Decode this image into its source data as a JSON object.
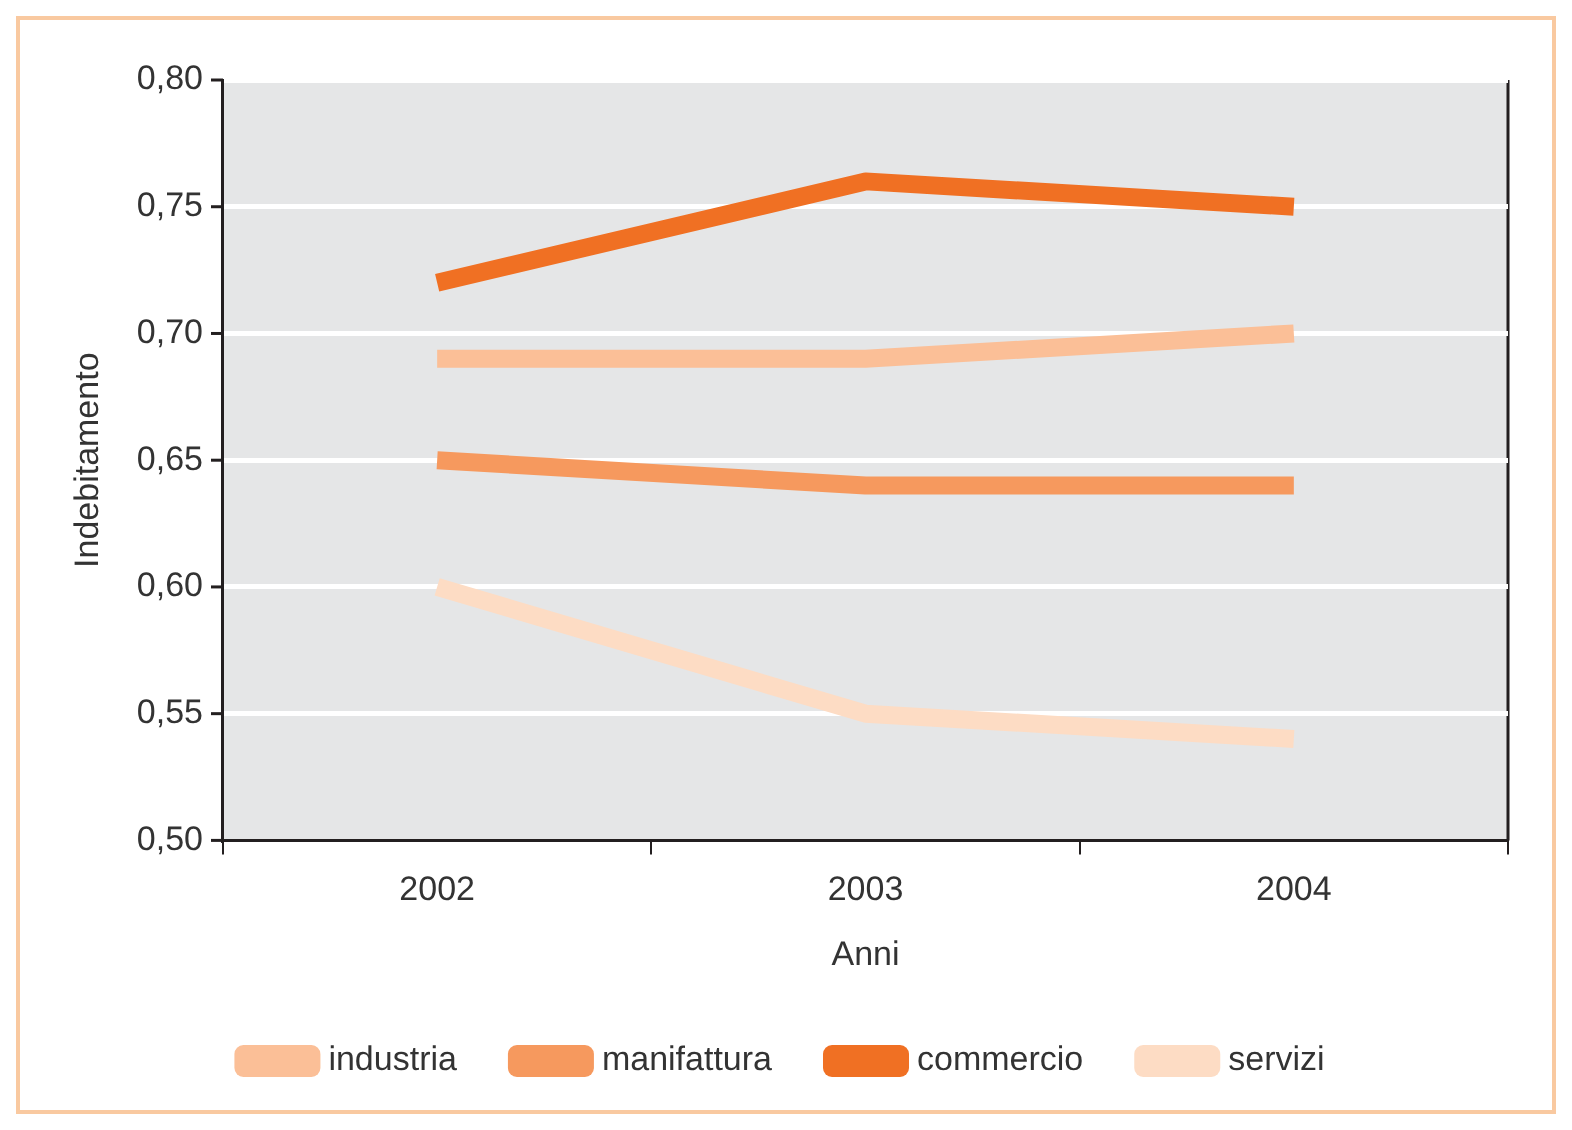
{
  "chart_data": {
    "type": "line",
    "xlabel": "Anni",
    "ylabel": "Indebitamento",
    "categories": [
      "2002",
      "2003",
      "2004"
    ],
    "series": [
      {
        "name": "industria",
        "color": "#fbbf97",
        "values": [
          0.69,
          0.69,
          0.7
        ]
      },
      {
        "name": "manifattura",
        "color": "#f6995e",
        "values": [
          0.65,
          0.64,
          0.64
        ]
      },
      {
        "name": "commercio",
        "color": "#f07023",
        "values": [
          0.72,
          0.76,
          0.75
        ]
      },
      {
        "name": "servizi",
        "color": "#fddcc4",
        "values": [
          0.6,
          0.55,
          0.54
        ]
      }
    ],
    "ylim": [
      0.5,
      0.8
    ],
    "yticks": [
      {
        "value": 0.5,
        "label": "0,50"
      },
      {
        "value": 0.55,
        "label": "0,55"
      },
      {
        "value": 0.6,
        "label": "0,60"
      },
      {
        "value": 0.65,
        "label": "0,65"
      },
      {
        "value": 0.7,
        "label": "0,70"
      },
      {
        "value": 0.75,
        "label": "0,75"
      },
      {
        "value": 0.8,
        "label": "0,80"
      }
    ],
    "grid": "y",
    "legend": "bottom",
    "marker": "none",
    "line_style": "solid"
  }
}
